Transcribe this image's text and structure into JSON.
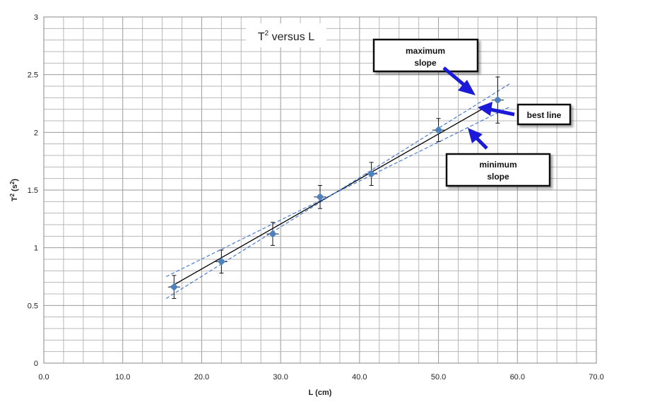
{
  "chart_data": {
    "type": "scatter",
    "title": "T",
    "title_superscript": "2",
    "title_suffix": " versus L",
    "xlabel": "L (cm)",
    "ylabel": "T",
    "ylabel_super": "2",
    "ylabel_units": " (s",
    "ylabel_units_super": "2",
    "ylabel_units_end": ")",
    "xlim": [
      0,
      70
    ],
    "ylim": [
      0,
      3
    ],
    "x_ticks": [
      "0.0",
      "10.0",
      "20.0",
      "30.0",
      "40.0",
      "50.0",
      "60.0",
      "70.0"
    ],
    "y_ticks": [
      "0",
      "0.5",
      "1",
      "1.5",
      "2",
      "2.5",
      "3"
    ],
    "grid": true,
    "points": [
      {
        "x": 16.5,
        "y": 0.66,
        "xerr": 0.5,
        "yerr": 0.1
      },
      {
        "x": 22.5,
        "y": 0.88,
        "xerr": 0.5,
        "yerr": 0.1
      },
      {
        "x": 29.0,
        "y": 1.12,
        "xerr": 0.5,
        "yerr": 0.1
      },
      {
        "x": 35.0,
        "y": 1.44,
        "xerr": 0.5,
        "yerr": 0.1
      },
      {
        "x": 41.5,
        "y": 1.64,
        "xerr": 0.5,
        "yerr": 0.1
      },
      {
        "x": 50.0,
        "y": 2.02,
        "xerr": 0.5,
        "yerr": 0.1
      },
      {
        "x": 57.5,
        "y": 2.28,
        "xerr": 0.5,
        "yerr": 0.2
      }
    ],
    "lines": [
      {
        "name": "best line",
        "x": [
          16,
          56
        ],
        "y": [
          0.66,
          2.22
        ],
        "color": "#000000",
        "dashed": false
      },
      {
        "name": "maximum slope",
        "x": [
          15.5,
          59
        ],
        "y": [
          0.56,
          2.42
        ],
        "color": "#4a7bd4",
        "dashed": true
      },
      {
        "name": "minimum slope",
        "x": [
          15.5,
          59
        ],
        "y": [
          0.75,
          2.22
        ],
        "color": "#4a7bd4",
        "dashed": true
      }
    ],
    "annotations": {
      "max_slope": [
        "maximum",
        "slope"
      ],
      "best_line": "best line",
      "min_slope": [
        "minimum",
        "slope"
      ]
    },
    "colors": {
      "point": "#4f81bd",
      "arrow": "#1a1ad8",
      "grid": "#b8b8b8"
    }
  }
}
